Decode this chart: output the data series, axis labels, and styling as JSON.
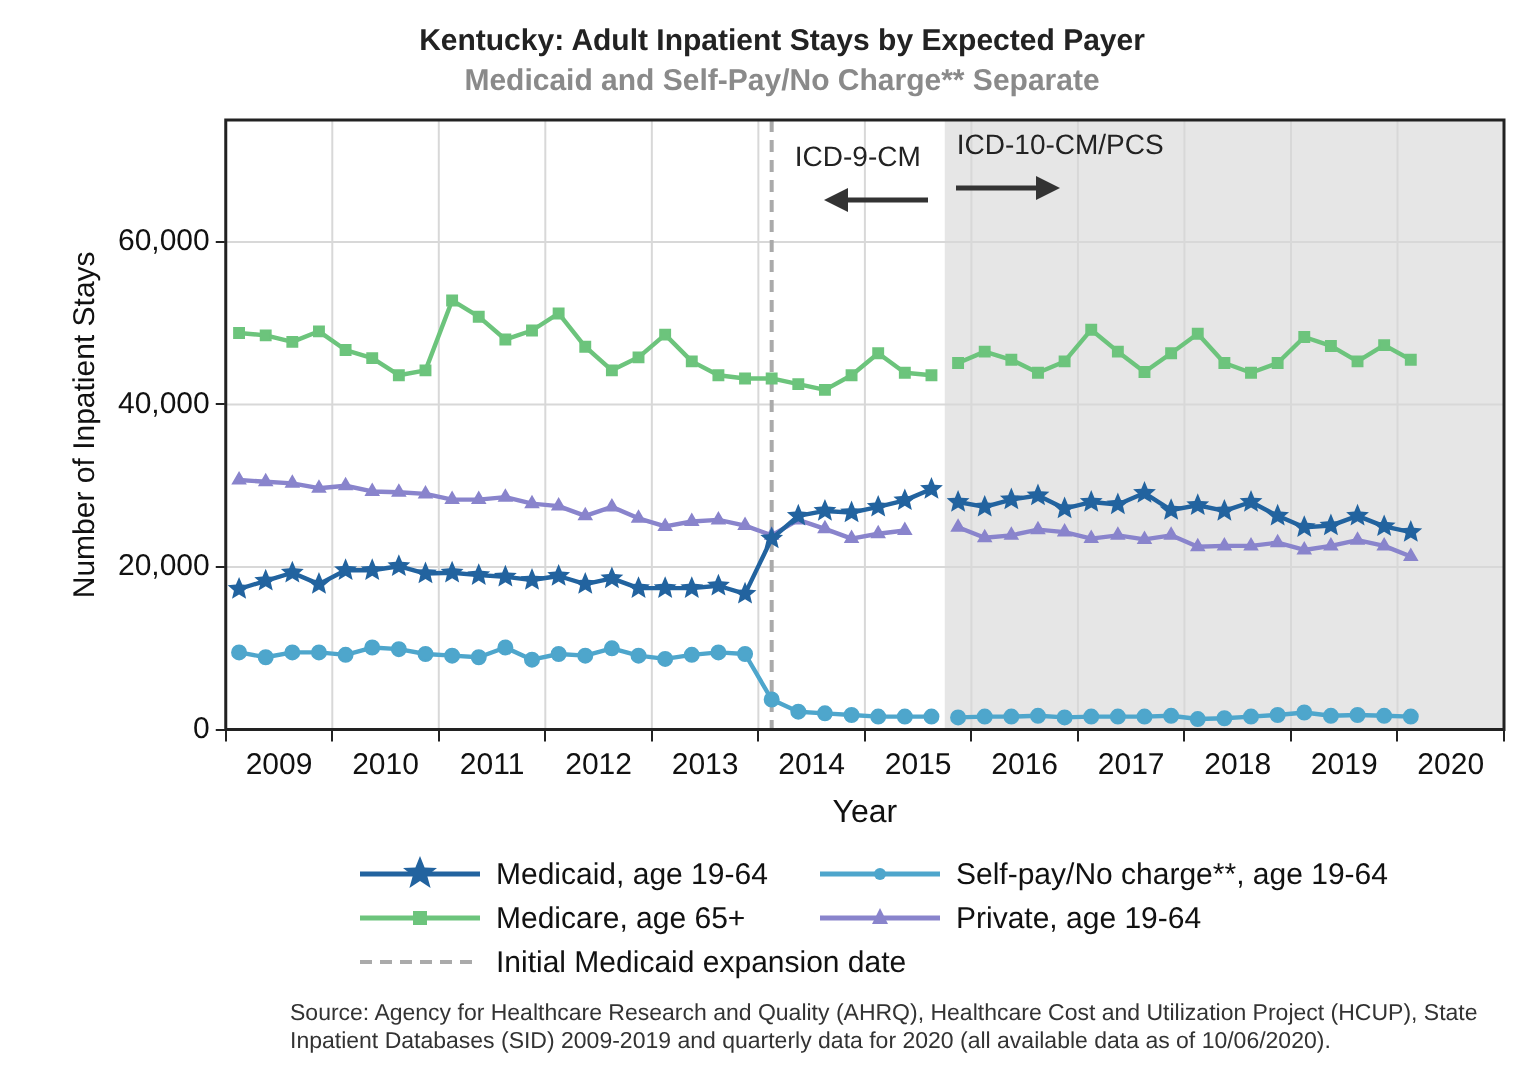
{
  "chart_data": {
    "type": "line",
    "title": "Kentucky: Adult Inpatient Stays by Expected Payer",
    "subtitle": "Medicaid and Self-Pay/No Charge** Separate",
    "xlabel": "Year",
    "ylabel": "Number of Inpatient Stays",
    "x": [
      2009.125,
      2009.375,
      2009.625,
      2009.875,
      2010.125,
      2010.375,
      2010.625,
      2010.875,
      2011.125,
      2011.375,
      2011.625,
      2011.875,
      2012.125,
      2012.375,
      2012.625,
      2012.875,
      2013.125,
      2013.375,
      2013.625,
      2013.875,
      2014.125,
      2014.375,
      2014.625,
      2014.875,
      2015.125,
      2015.375,
      2015.625,
      2015.75,
      2015.875,
      2016.125,
      2016.375,
      2016.625,
      2016.875,
      2017.125,
      2017.375,
      2017.625,
      2017.875,
      2018.125,
      2018.375,
      2018.625,
      2018.875,
      2019.125,
      2019.375,
      2019.625,
      2019.875,
      2020.125
    ],
    "series": [
      {
        "name": "Medicaid, age 19-64",
        "color": "#22639f",
        "marker": "star",
        "values": [
          17300,
          18300,
          19300,
          17900,
          19600,
          19600,
          20100,
          19200,
          19300,
          19000,
          18800,
          18400,
          18900,
          17900,
          18600,
          17400,
          17400,
          17400,
          17700,
          16700,
          23500,
          26300,
          26900,
          26700,
          27400,
          28200,
          29600,
          null,
          28000,
          27400,
          28300,
          28800,
          27200,
          28000,
          27700,
          29100,
          27000,
          27600,
          26900,
          28000,
          26300,
          24900,
          25100,
          26300,
          25000,
          24300
        ]
      },
      {
        "name": "Self-pay/No charge**, age 19-64",
        "color": "#4ea6cc",
        "marker": "circle",
        "values": [
          9500,
          8900,
          9500,
          9500,
          9200,
          10100,
          9900,
          9300,
          9100,
          8900,
          10100,
          8600,
          9300,
          9100,
          10000,
          9100,
          8700,
          9200,
          9500,
          9300,
          3700,
          2200,
          2000,
          1800,
          1600,
          1600,
          1600,
          null,
          1500,
          1600,
          1600,
          1700,
          1500,
          1600,
          1600,
          1600,
          1700,
          1300,
          1400,
          1600,
          1800,
          2100,
          1700,
          1800,
          1700,
          1600
        ]
      },
      {
        "name": "Medicare, age 65+",
        "color": "#6cc47c",
        "marker": "square",
        "values": [
          48800,
          48500,
          47700,
          49000,
          46700,
          45700,
          43600,
          44200,
          52800,
          50800,
          48000,
          49100,
          51200,
          47100,
          44200,
          45800,
          48600,
          45300,
          43600,
          43200,
          43200,
          42500,
          41800,
          43600,
          46300,
          43900,
          43600,
          null,
          45100,
          46500,
          45500,
          43900,
          45300,
          49200,
          46500,
          44000,
          46300,
          48700,
          45100,
          43900,
          45100,
          48300,
          47200,
          45300,
          47300,
          45500
        ]
      },
      {
        "name": "Private, age 19-64",
        "color": "#8984cc",
        "marker": "triangle",
        "values": [
          30700,
          30500,
          30300,
          29700,
          30000,
          29300,
          29200,
          29000,
          28300,
          28300,
          28600,
          27800,
          27500,
          26300,
          27400,
          26000,
          25000,
          25600,
          25800,
          25100,
          23900,
          25800,
          24700,
          23500,
          24100,
          24500,
          null,
          null,
          24900,
          23600,
          23900,
          24600,
          24300,
          23500,
          23900,
          23400,
          23900,
          22500,
          22600,
          22600,
          23000,
          22100,
          22600,
          23300,
          22600,
          21300
        ]
      }
    ],
    "xlim": [
      2009,
      2021
    ],
    "xticks": [
      {
        "value": 2009,
        "label": null
      },
      {
        "value": 2009.5,
        "label": "2009"
      },
      {
        "value": 2010,
        "label": null
      },
      {
        "value": 2010.5,
        "label": "2010"
      },
      {
        "value": 2011,
        "label": null
      },
      {
        "value": 2011.5,
        "label": "2011"
      },
      {
        "value": 2012,
        "label": null
      },
      {
        "value": 2012.5,
        "label": "2012"
      },
      {
        "value": 2013,
        "label": null
      },
      {
        "value": 2013.5,
        "label": "2013"
      },
      {
        "value": 2014,
        "label": null
      },
      {
        "value": 2014.5,
        "label": "2014"
      },
      {
        "value": 2015,
        "label": null
      },
      {
        "value": 2015.5,
        "label": "2015"
      },
      {
        "value": 2016,
        "label": null
      },
      {
        "value": 2016.5,
        "label": "2016"
      },
      {
        "value": 2017,
        "label": null
      },
      {
        "value": 2017.5,
        "label": "2017"
      },
      {
        "value": 2018,
        "label": null
      },
      {
        "value": 2018.5,
        "label": "2018"
      },
      {
        "value": 2019,
        "label": null
      },
      {
        "value": 2019.5,
        "label": "2019"
      },
      {
        "value": 2020,
        "label": null
      },
      {
        "value": 2020.5,
        "label": "2020"
      },
      {
        "value": 2021,
        "label": null
      }
    ],
    "ylim": [
      0,
      75000
    ],
    "yticks": [
      0,
      {
        "value": 20000,
        "label": "20,000"
      },
      {
        "value": 40000,
        "label": "40,000"
      },
      {
        "value": 60000,
        "label": "60,000"
      }
    ],
    "grid": true,
    "legend": "bottom",
    "line_style": "solid",
    "ref_lines": [
      {
        "axis": "x",
        "value": 2014.125,
        "label": "Initial Medicaid expansion date",
        "color": "#aaaaaa",
        "line_style": "dashed"
      }
    ],
    "bands": [
      {
        "axis": "x",
        "from": 2015.75,
        "to": 2021,
        "label": "ICD-10-CM/PCS",
        "color": "#e6e6e6"
      }
    ],
    "annotations": [
      {
        "text": "ICD-9-CM",
        "x": 2015.75,
        "y": 70000
      },
      "Source: Agency for Healthcare Research and Quality (AHRQ), Healthcare Cost and Utilization Project (HCUP), State Inpatient Databases (SID) 2009-2019 and quarterly data for 2020 (all available data as of 10/06/2020)."
    ]
  }
}
